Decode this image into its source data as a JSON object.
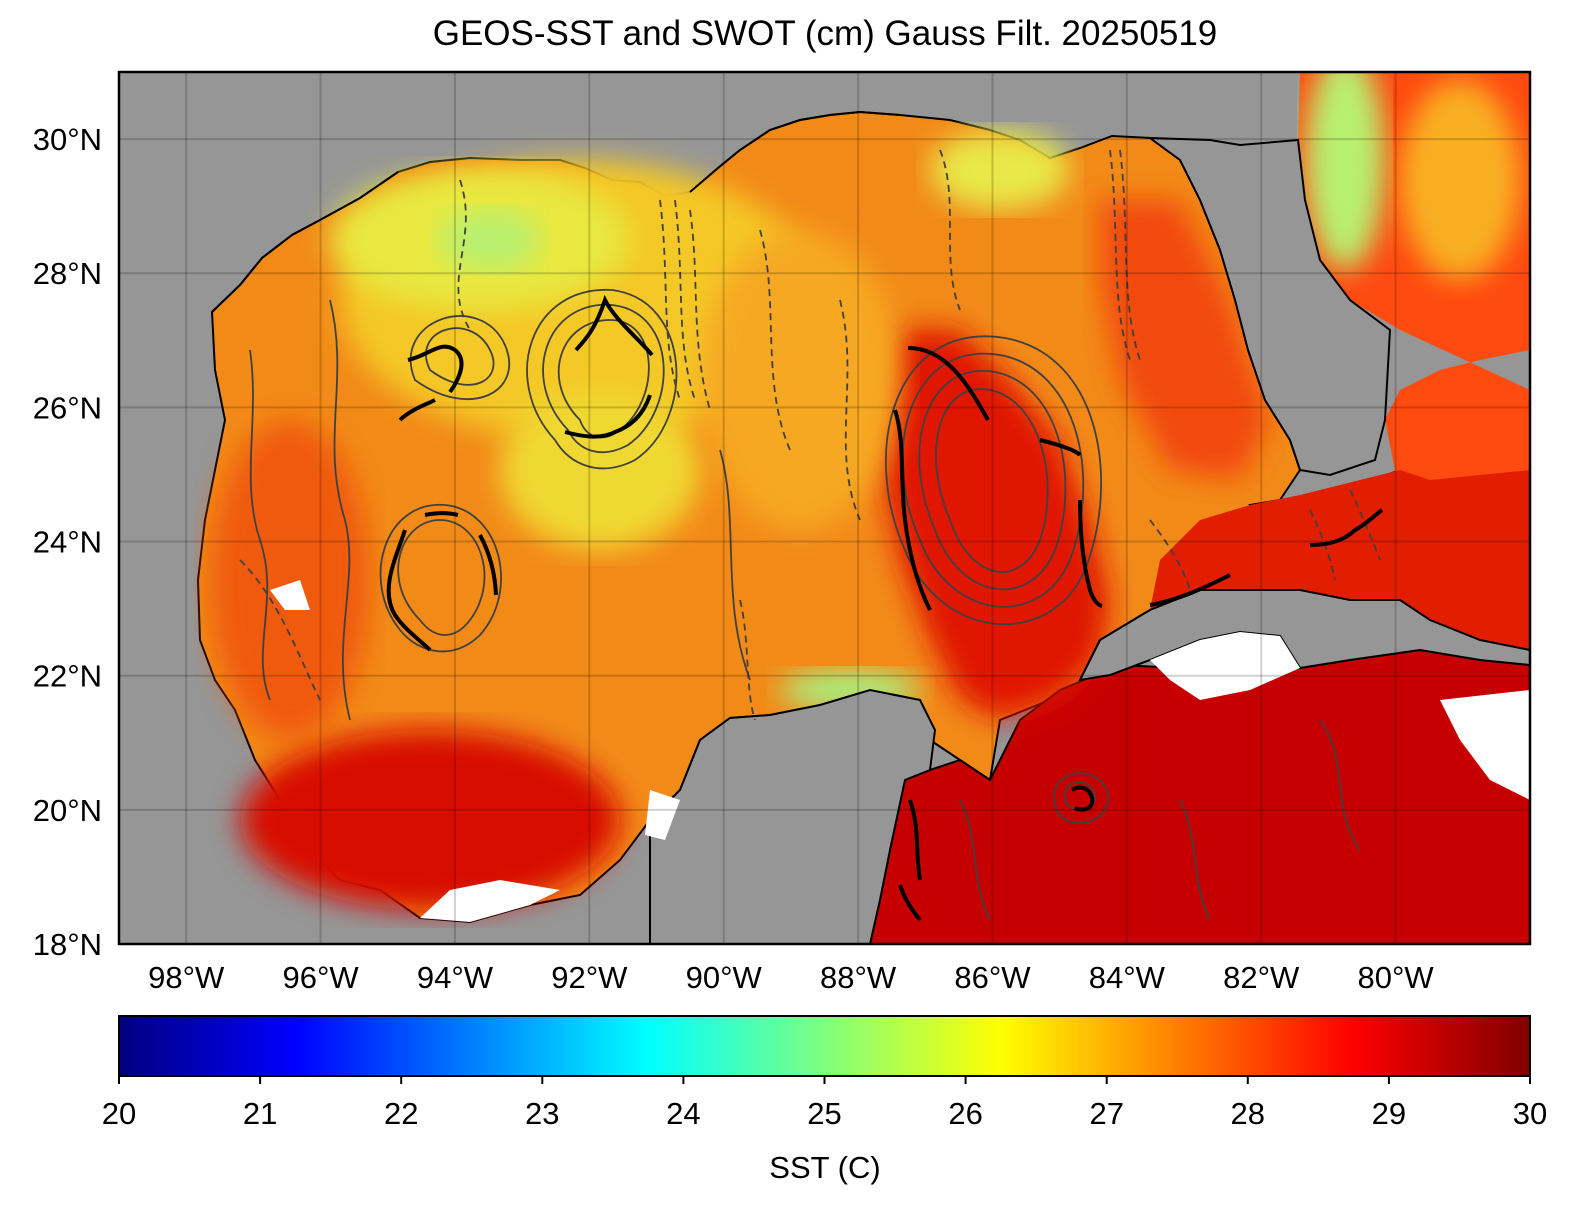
{
  "title": "GEOS-SST  and SWOT (cm) Gauss Filt. 20250519",
  "map": {
    "lon_range": [
      -99,
      -78
    ],
    "lat_range": [
      18,
      31
    ],
    "lat_ticks": [
      {
        "value": 30,
        "label": "30°N"
      },
      {
        "value": 28,
        "label": "28°N"
      },
      {
        "value": 26,
        "label": "26°N"
      },
      {
        "value": 24,
        "label": "24°N"
      },
      {
        "value": 22,
        "label": "22°N"
      },
      {
        "value": 20,
        "label": "20°N"
      },
      {
        "value": 18,
        "label": "18°N"
      }
    ],
    "lon_ticks": [
      {
        "value": -98,
        "label": "98°W"
      },
      {
        "value": -96,
        "label": "96°W"
      },
      {
        "value": -94,
        "label": "94°W"
      },
      {
        "value": -92,
        "label": "92°W"
      },
      {
        "value": -90,
        "label": "90°W"
      },
      {
        "value": -88,
        "label": "88°W"
      },
      {
        "value": -86,
        "label": "86°W"
      },
      {
        "value": -84,
        "label": "84°W"
      },
      {
        "value": -82,
        "label": "82°W"
      },
      {
        "value": -80,
        "label": "80°W"
      }
    ],
    "land_color": "#969696",
    "grid": true
  },
  "colorbar": {
    "label": "SST (C)",
    "min": 20,
    "max": 30,
    "tick_labels": [
      "20",
      "21",
      "22",
      "23",
      "24",
      "25",
      "26",
      "27",
      "28",
      "29",
      "30"
    ],
    "colormap": "jet",
    "colors": [
      "#00007f",
      "#0000ff",
      "#007fff",
      "#00ffff",
      "#7fff7f",
      "#ffff00",
      "#ff7f00",
      "#ff0000",
      "#7f0000"
    ]
  }
}
